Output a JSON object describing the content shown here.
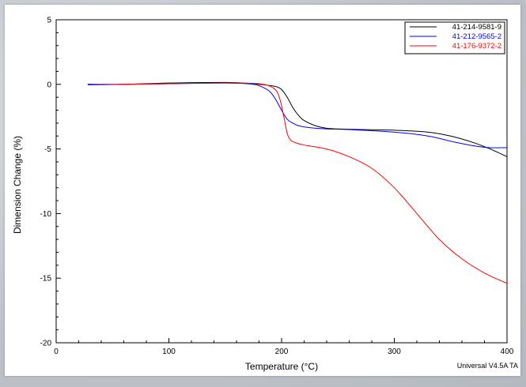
{
  "chart_data": {
    "type": "line",
    "title": "",
    "xlabel": "Temperature (°C)",
    "ylabel": "Dimension Change (%)",
    "xlim": [
      0,
      400
    ],
    "ylim": [
      -20,
      5
    ],
    "xticks": [
      0,
      100,
      200,
      300,
      400
    ],
    "yticks": [
      5,
      0,
      -5,
      -10,
      -15,
      -20
    ],
    "grid": false,
    "legend_position": "top-right",
    "footer": "Universal V4.5A TA",
    "series": [
      {
        "name": "41-214-9581-9",
        "color": "#000000",
        "x": [
          28,
          60,
          100,
          150,
          175,
          190,
          196,
          200,
          205,
          210,
          215,
          220,
          230,
          240,
          250,
          270,
          300,
          330,
          350,
          370,
          385,
          400
        ],
        "y": [
          0,
          0,
          0.1,
          0.15,
          0.05,
          -0.1,
          -0.2,
          -0.4,
          -1.0,
          -1.8,
          -2.4,
          -2.8,
          -3.2,
          -3.4,
          -3.45,
          -3.5,
          -3.55,
          -3.7,
          -4.0,
          -4.5,
          -5.0,
          -5.6
        ]
      },
      {
        "name": "41-212-9565-2",
        "color": "#0000ff",
        "x": [
          28,
          60,
          100,
          150,
          175,
          185,
          190,
          195,
          200,
          205,
          210,
          215,
          225,
          240,
          260,
          300,
          330,
          350,
          370,
          385,
          400
        ],
        "y": [
          0,
          0,
          0.05,
          0.1,
          0,
          -0.3,
          -0.6,
          -1.2,
          -2.0,
          -2.7,
          -3.0,
          -3.2,
          -3.35,
          -3.45,
          -3.5,
          -3.7,
          -4.0,
          -4.4,
          -4.75,
          -4.9,
          -4.9
        ]
      },
      {
        "name": "41-176-9372-2",
        "color": "#ff0000",
        "x": [
          28,
          60,
          100,
          150,
          180,
          193,
          198,
          202,
          205,
          208,
          212,
          220,
          240,
          260,
          280,
          300,
          320,
          340,
          360,
          380,
          400
        ],
        "y": [
          -0.05,
          0,
          0.05,
          0.1,
          0.05,
          -0.3,
          -1.0,
          -2.5,
          -3.8,
          -4.3,
          -4.5,
          -4.7,
          -5.0,
          -5.6,
          -6.5,
          -8.0,
          -10.0,
          -12.0,
          -13.5,
          -14.6,
          -15.4
        ]
      }
    ]
  }
}
